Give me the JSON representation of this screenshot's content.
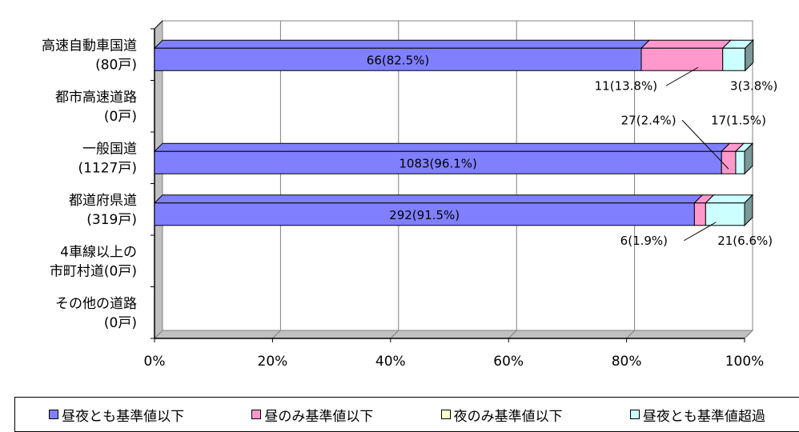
{
  "chart_data": {
    "type": "bar",
    "orientation": "horizontal",
    "stacked": true,
    "percent_stacked": true,
    "categories": [
      [
        "高速自動車国道",
        "(80戸)"
      ],
      [
        "都市高速道路",
        "(0戸)"
      ],
      [
        "一般国道",
        "(1127戸)"
      ],
      [
        "都道府県道",
        "(319戸)"
      ],
      [
        "4車線以上の",
        "市町村道(0戸)"
      ],
      [
        "その他の道路",
        "(0戸)"
      ]
    ],
    "series": [
      {
        "name": "昼夜とも基準値以下",
        "color": "#8080ff",
        "values": [
          82.5,
          0,
          96.1,
          91.5,
          0,
          0
        ]
      },
      {
        "name": "昼のみ基準値以下",
        "color": "#ff99cc",
        "values": [
          13.8,
          0,
          2.4,
          1.9,
          0,
          0
        ]
      },
      {
        "name": "夜のみ基準値以下",
        "color": "#ffffcc",
        "values": [
          0,
          0,
          0,
          0,
          0,
          0
        ]
      },
      {
        "name": "昼夜とも基準値超過",
        "color": "#ccffff",
        "values": [
          3.8,
          0,
          1.5,
          6.6,
          0,
          0
        ]
      }
    ],
    "xlim": [
      0,
      100
    ],
    "x_ticks": [
      "0%",
      "20%",
      "40%",
      "60%",
      "80%",
      "100%"
    ],
    "grid": true,
    "legend_position": "bottom",
    "labels": [
      {
        "row": 0,
        "series": 0,
        "text": "66(82.5%)",
        "placement": "inside"
      },
      {
        "row": 0,
        "series": 1,
        "text": "11(13.8%)",
        "placement": "below-left"
      },
      {
        "row": 0,
        "series": 3,
        "text": "3(3.8%)",
        "placement": "below"
      },
      {
        "row": 2,
        "series": 0,
        "text": "1083(96.1%)",
        "placement": "inside"
      },
      {
        "row": 2,
        "series": 1,
        "text": "27(2.4%)",
        "placement": "above-left"
      },
      {
        "row": 2,
        "series": 3,
        "text": "17(1.5%)",
        "placement": "above"
      },
      {
        "row": 3,
        "series": 0,
        "text": "292(91.5%)",
        "placement": "inside"
      },
      {
        "row": 3,
        "series": 1,
        "text": "6(1.9%)",
        "placement": "below-left"
      },
      {
        "row": 3,
        "series": 3,
        "text": "21(6.6%)",
        "placement": "below"
      }
    ]
  }
}
